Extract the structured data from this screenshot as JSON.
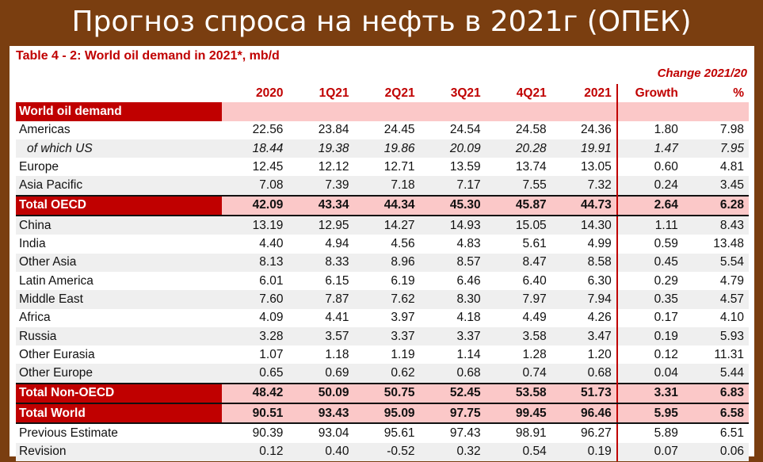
{
  "banner_title": "Прогноз спроса на нефть в 2021г (ОПЕК)",
  "table_title": "Table 4 - 2: World oil demand in 2021*, mb/d",
  "change_header": "Change 2021/20",
  "columns": [
    "2020",
    "1Q21",
    "2Q21",
    "3Q21",
    "4Q21",
    "2021",
    "Growth",
    "%"
  ],
  "section_label": "World oil demand",
  "rows": [
    {
      "label": "Americas",
      "style": "normal",
      "values": [
        "22.56",
        "23.84",
        "24.45",
        "24.54",
        "24.58",
        "24.36",
        "1.80",
        "7.98"
      ]
    },
    {
      "label": "of which US",
      "style": "italic",
      "values": [
        "18.44",
        "19.38",
        "19.86",
        "20.09",
        "20.28",
        "19.91",
        "1.47",
        "7.95"
      ]
    },
    {
      "label": "Europe",
      "style": "normal",
      "values": [
        "12.45",
        "12.12",
        "12.71",
        "13.59",
        "13.74",
        "13.05",
        "0.60",
        "4.81"
      ]
    },
    {
      "label": "Asia Pacific",
      "style": "normal",
      "values": [
        "7.08",
        "7.39",
        "7.18",
        "7.17",
        "7.55",
        "7.32",
        "0.24",
        "3.45"
      ]
    },
    {
      "label": "Total OECD",
      "style": "bold",
      "values": [
        "42.09",
        "43.34",
        "44.34",
        "45.30",
        "45.87",
        "44.73",
        "2.64",
        "6.28"
      ]
    },
    {
      "label": "China",
      "style": "normal",
      "values": [
        "13.19",
        "12.95",
        "14.27",
        "14.93",
        "15.05",
        "14.30",
        "1.11",
        "8.43"
      ]
    },
    {
      "label": "India",
      "style": "normal",
      "values": [
        "4.40",
        "4.94",
        "4.56",
        "4.83",
        "5.61",
        "4.99",
        "0.59",
        "13.48"
      ]
    },
    {
      "label": "Other Asia",
      "style": "normal",
      "values": [
        "8.13",
        "8.33",
        "8.96",
        "8.57",
        "8.47",
        "8.58",
        "0.45",
        "5.54"
      ]
    },
    {
      "label": "Latin America",
      "style": "normal",
      "values": [
        "6.01",
        "6.15",
        "6.19",
        "6.46",
        "6.40",
        "6.30",
        "0.29",
        "4.79"
      ]
    },
    {
      "label": "Middle East",
      "style": "normal",
      "values": [
        "7.60",
        "7.87",
        "7.62",
        "8.30",
        "7.97",
        "7.94",
        "0.35",
        "4.57"
      ]
    },
    {
      "label": "Africa",
      "style": "normal",
      "values": [
        "4.09",
        "4.41",
        "3.97",
        "4.18",
        "4.49",
        "4.26",
        "0.17",
        "4.10"
      ]
    },
    {
      "label": "Russia",
      "style": "normal",
      "values": [
        "3.28",
        "3.57",
        "3.37",
        "3.37",
        "3.58",
        "3.47",
        "0.19",
        "5.93"
      ]
    },
    {
      "label": "Other Eurasia",
      "style": "normal",
      "values": [
        "1.07",
        "1.18",
        "1.19",
        "1.14",
        "1.28",
        "1.20",
        "0.12",
        "11.31"
      ]
    },
    {
      "label": "Other Europe",
      "style": "normal",
      "values": [
        "0.65",
        "0.69",
        "0.62",
        "0.68",
        "0.74",
        "0.68",
        "0.04",
        "5.44"
      ]
    },
    {
      "label": "Total Non-OECD",
      "style": "bold",
      "values": [
        "48.42",
        "50.09",
        "50.75",
        "52.45",
        "53.58",
        "51.73",
        "3.31",
        "6.83"
      ]
    },
    {
      "label": "Total World",
      "style": "bold",
      "values": [
        "90.51",
        "93.43",
        "95.09",
        "97.75",
        "99.45",
        "96.46",
        "5.95",
        "6.58"
      ]
    },
    {
      "label": "Previous Estimate",
      "style": "normal",
      "values": [
        "90.39",
        "93.04",
        "95.61",
        "97.43",
        "98.91",
        "96.27",
        "5.89",
        "6.51"
      ]
    },
    {
      "label": "Revision",
      "style": "normal",
      "values": [
        "0.12",
        "0.40",
        "-0.52",
        "0.32",
        "0.54",
        "0.19",
        "0.07",
        "0.06"
      ]
    }
  ],
  "colors": {
    "accent_red": "#c00000",
    "highlight_pink": "#fbc8c8",
    "background_brown": "#7a3e10"
  }
}
